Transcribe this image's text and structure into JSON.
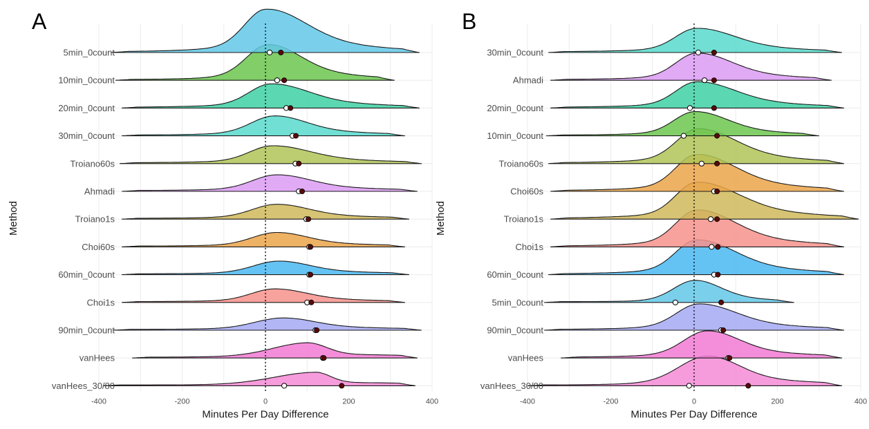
{
  "chart_data": [
    {
      "type": "ridgeline",
      "panel_label": "A",
      "xlabel": "Minutes Per Day Difference",
      "ylabel": "Method",
      "xlim": [
        -400,
        400
      ],
      "xticks": [
        -400,
        -200,
        0,
        200,
        400
      ],
      "reference_line_x": 0,
      "grid": true,
      "methods": [
        {
          "name": "5min_0count",
          "color": "#63c8e8",
          "mode": 0,
          "left": -370,
          "right": 370,
          "peak": 1.0,
          "median": 10,
          "mean": 37
        },
        {
          "name": "10min_0count",
          "color": "#6cc64f",
          "mode": 5,
          "left": -360,
          "right": 310,
          "peak": 0.82,
          "median": 28,
          "mean": 45
        },
        {
          "name": "20min_0count",
          "color": "#3ed0a3",
          "mode": 12,
          "left": -345,
          "right": 370,
          "peak": 0.55,
          "median": 50,
          "mean": 60
        },
        {
          "name": "30min_0count",
          "color": "#58d9cc",
          "mode": 20,
          "left": -345,
          "right": 335,
          "peak": 0.45,
          "median": 65,
          "mean": 73
        },
        {
          "name": "Troiano60s",
          "color": "#afc457",
          "mode": 15,
          "left": -350,
          "right": 375,
          "peak": 0.4,
          "median": 72,
          "mean": 80
        },
        {
          "name": "Ahmadi",
          "color": "#dc9bf3",
          "mode": 25,
          "left": -345,
          "right": 365,
          "peak": 0.37,
          "median": 80,
          "mean": 88
        },
        {
          "name": "Troiano1s",
          "color": "#cfb95a",
          "mode": 25,
          "left": -345,
          "right": 345,
          "peak": 0.33,
          "median": 98,
          "mean": 103
        },
        {
          "name": "Choi60s",
          "color": "#eba54a",
          "mode": 25,
          "left": -345,
          "right": 335,
          "peak": 0.32,
          "median": 105,
          "mean": 108
        },
        {
          "name": "60min_0count",
          "color": "#4ab8f2",
          "mode": 30,
          "left": -345,
          "right": 345,
          "peak": 0.3,
          "median": 105,
          "mean": 108
        },
        {
          "name": "Choi1s",
          "color": "#f7928c",
          "mode": 20,
          "left": -345,
          "right": 335,
          "peak": 0.3,
          "median": 100,
          "mean": 110
        },
        {
          "name": "90min_0count",
          "color": "#a6a9f3",
          "mode": 40,
          "left": -365,
          "right": 375,
          "peak": 0.27,
          "median": 120,
          "mean": 123
        },
        {
          "name": "vanHees",
          "color": "#f27ad3",
          "mode": 100,
          "left": -320,
          "right": 365,
          "peak": 0.34,
          "median": 138,
          "mean": 140
        },
        {
          "name": "vanHees_30/80",
          "color": "#f58bd6",
          "mode": 120,
          "left": -390,
          "right": 360,
          "peak": 0.3,
          "median": 45,
          "mean": 183
        }
      ]
    },
    {
      "type": "ridgeline",
      "panel_label": "B",
      "xlabel": "Minutes Per Day Difference",
      "ylabel": "Method",
      "xlim": [
        -400,
        400
      ],
      "xticks": [
        -400,
        -200,
        0,
        200,
        400
      ],
      "reference_line_x": 0,
      "grid": true,
      "methods": [
        {
          "name": "30min_0count",
          "color": "#58d9cc",
          "mode": 5,
          "left": -350,
          "right": 355,
          "peak": 0.55,
          "median": 10,
          "mean": 48
        },
        {
          "name": "Ahmadi",
          "color": "#dc9bf3",
          "mode": 5,
          "left": -345,
          "right": 330,
          "peak": 0.62,
          "median": 25,
          "mean": 48
        },
        {
          "name": "20min_0count",
          "color": "#3ed0a3",
          "mode": 5,
          "left": -345,
          "right": 360,
          "peak": 0.6,
          "median": -10,
          "mean": 48
        },
        {
          "name": "10min_0count",
          "color": "#6cc64f",
          "mode": 0,
          "left": -355,
          "right": 300,
          "peak": 0.55,
          "median": -25,
          "mean": 55
        },
        {
          "name": "Troiano60s",
          "color": "#afc457",
          "mode": 8,
          "left": -350,
          "right": 360,
          "peak": 0.8,
          "median": 18,
          "mean": 55
        },
        {
          "name": "Choi60s",
          "color": "#eba54a",
          "mode": 5,
          "left": -345,
          "right": 360,
          "peak": 0.85,
          "median": 48,
          "mean": 55
        },
        {
          "name": "Troiano1s",
          "color": "#cfb95a",
          "mode": 5,
          "left": -345,
          "right": 395,
          "peak": 0.85,
          "median": 40,
          "mean": 55
        },
        {
          "name": "Choi1s",
          "color": "#f7928c",
          "mode": 5,
          "left": -345,
          "right": 360,
          "peak": 0.85,
          "median": 42,
          "mean": 57
        },
        {
          "name": "60min_0count",
          "color": "#4ab8f2",
          "mode": 5,
          "left": -350,
          "right": 360,
          "peak": 0.8,
          "median": 48,
          "mean": 57
        },
        {
          "name": "5min_0count",
          "color": "#63c8e8",
          "mode": 0,
          "left": -360,
          "right": 240,
          "peak": 0.5,
          "median": -45,
          "mean": 65
        },
        {
          "name": "90min_0count",
          "color": "#a6a9f3",
          "mode": 10,
          "left": -360,
          "right": 360,
          "peak": 0.6,
          "median": 65,
          "mean": 70
        },
        {
          "name": "vanHees",
          "color": "#f27ad3",
          "mode": 30,
          "left": -320,
          "right": 355,
          "peak": 0.62,
          "median": 82,
          "mean": 85
        },
        {
          "name": "vanHees_30/80",
          "color": "#f58bd6",
          "mode": 30,
          "left": -400,
          "right": 355,
          "peak": 0.68,
          "median": -12,
          "mean": 130
        }
      ]
    }
  ]
}
